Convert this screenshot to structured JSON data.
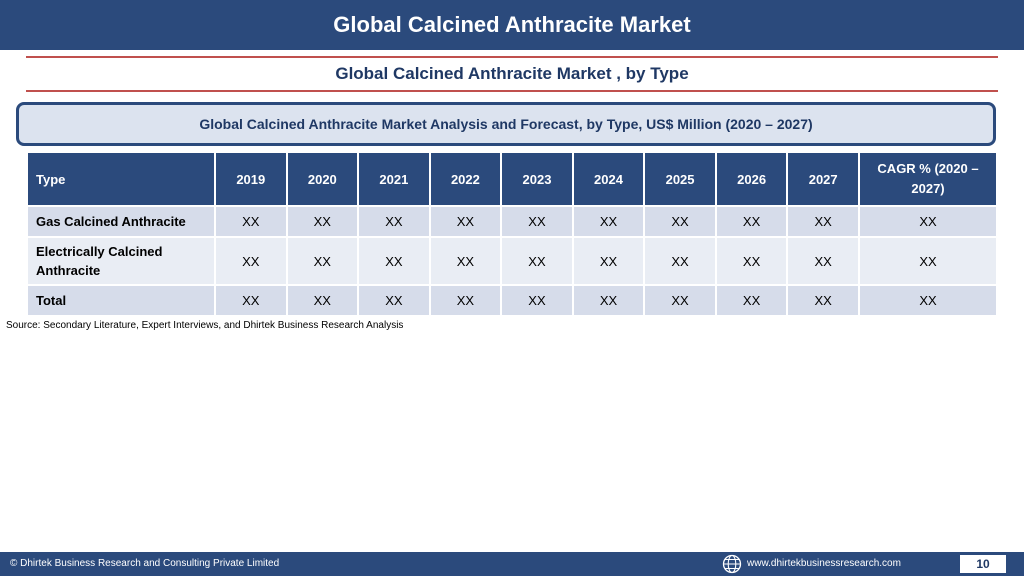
{
  "header": {
    "title": "Global Calcined Anthracite Market",
    "subtitle": "Global Calcined Anthracite Market , by Type"
  },
  "banner": {
    "text": "Global Calcined Anthracite Market  Analysis and Forecast, by Type, US$ Million (2020 – 2027)"
  },
  "table": {
    "columns": [
      "Type",
      "2019",
      "2020",
      "2021",
      "2022",
      "2023",
      "2024",
      "2025",
      "2026",
      "2027",
      "CAGR % (2020 – 2027)"
    ],
    "rows": [
      {
        "label": "Gas Calcined Anthracite",
        "values": [
          "XX",
          "XX",
          "XX",
          "XX",
          "XX",
          "XX",
          "XX",
          "XX",
          "XX",
          "XX"
        ]
      },
      {
        "label": "Electrically Calcined Anthracite",
        "values": [
          "XX",
          "XX",
          "XX",
          "XX",
          "XX",
          "XX",
          "XX",
          "XX",
          "XX",
          "XX"
        ]
      },
      {
        "label": "Total",
        "values": [
          "XX",
          "XX",
          "XX",
          "XX",
          "XX",
          "XX",
          "XX",
          "XX",
          "XX",
          "XX"
        ]
      }
    ]
  },
  "source": "Source: Secondary Literature, Expert Interviews, and Dhirtek Business Research Analysis",
  "footer": {
    "copyright": "© Dhirtek Business Research and Consulting Private Limited",
    "website": "www.dhirtekbusinessresearch.com",
    "page_number": "10",
    "globe_icon": "globe-icon"
  },
  "colors": {
    "primary": "#2b4a7c",
    "accent_line": "#c0504d",
    "row_dark": "#d6dcea",
    "row_light": "#e9edf4"
  }
}
